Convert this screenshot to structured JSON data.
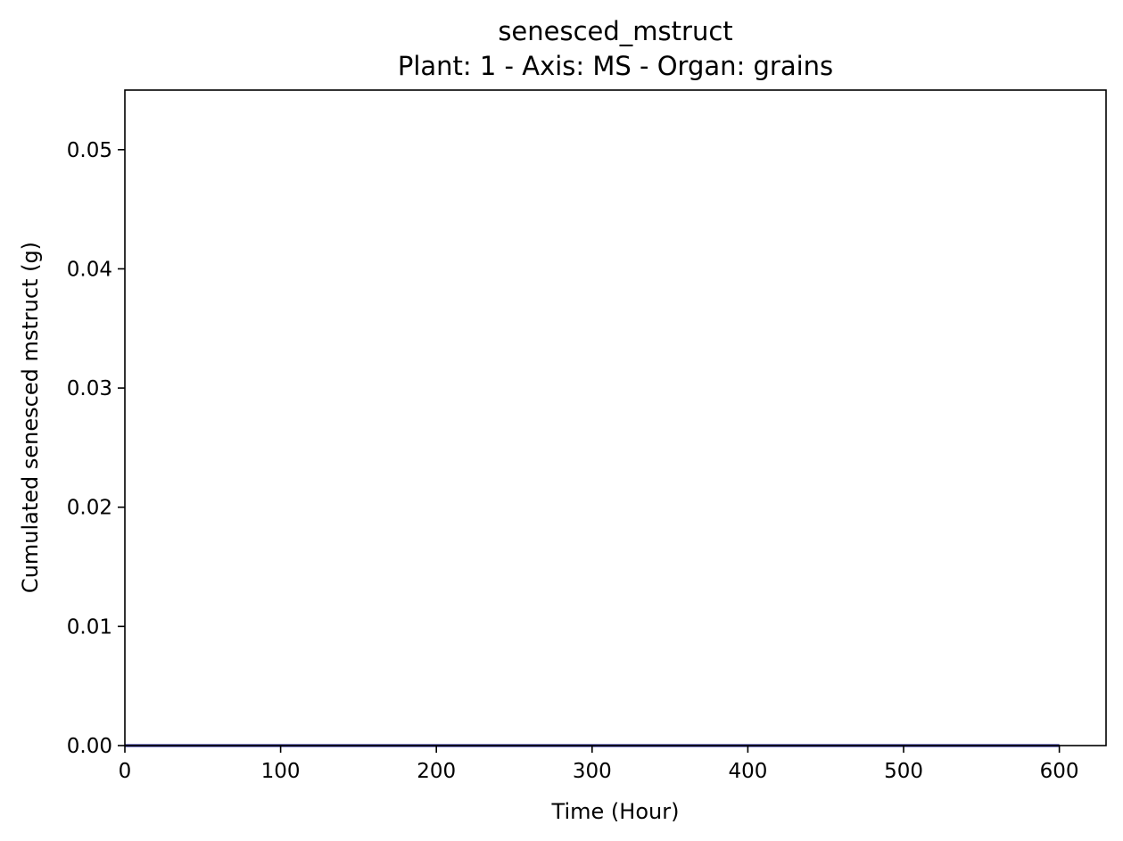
{
  "chart_data": {
    "type": "line",
    "title": "senesced_mstruct",
    "subtitle": "Plant: 1 - Axis: MS - Organ: grains",
    "xlabel": "Time (Hour)",
    "ylabel": "Cumulated senesced mstruct (g)",
    "xlim": [
      0,
      630
    ],
    "ylim": [
      0,
      0.055
    ],
    "x_ticks": [
      0,
      100,
      200,
      300,
      400,
      500,
      600
    ],
    "x_tick_labels": [
      "0",
      "100",
      "200",
      "300",
      "400",
      "500",
      "600"
    ],
    "y_ticks": [
      0,
      0.01,
      0.02,
      0.03,
      0.04,
      0.05
    ],
    "y_tick_labels": [
      "0.00",
      "0.01",
      "0.02",
      "0.03",
      "0.04",
      "0.05"
    ],
    "grid": false,
    "series": [
      {
        "color": "#000080",
        "x": [
          0,
          600
        ],
        "y": [
          0,
          0
        ]
      }
    ]
  }
}
